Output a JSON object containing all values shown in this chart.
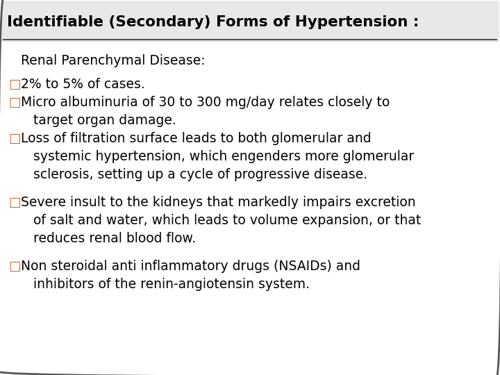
{
  "title": "Identifiable (Secondary) Forms of Hypertension :",
  "title_fontsize": 15.5,
  "title_color": "#000000",
  "title_bg_color": "#e8e8e8",
  "body_bg_color": "#ffffff",
  "border_color": "#555555",
  "subheading": "  Renal Parenchymal Disease:",
  "subheading_color": "#000000",
  "subheading_fontsize": 13.5,
  "bullet_color": "#cc6633",
  "bullet_char": "□",
  "text_color": "#000000",
  "text_fontsize": 13.5,
  "bullets": [
    {
      "first_line": "2% to 5% of cases.",
      "continuation": []
    },
    {
      "first_line": "Micro albuminuria of 30 to 300 mg/day relates closely to",
      "continuation": [
        "target organ damage."
      ]
    },
    {
      "first_line": "Loss of filtration surface leads to both glomerular and",
      "continuation": [
        "systemic hypertension, which engenders more glomerular",
        "sclerosis, setting up a cycle of progressive disease."
      ]
    },
    {
      "first_line": "",
      "continuation": []
    },
    {
      "first_line": "Severe insult to the kidneys that markedly impairs excretion",
      "continuation": [
        "of salt and water, which leads to volume expansion, or that",
        "reduces renal blood flow."
      ]
    },
    {
      "first_line": "",
      "continuation": []
    },
    {
      "first_line": "Non steroidal anti inflammatory drugs (NSAIDs) and",
      "continuation": [
        "inhibitors of the renin-angiotensin system."
      ]
    }
  ]
}
